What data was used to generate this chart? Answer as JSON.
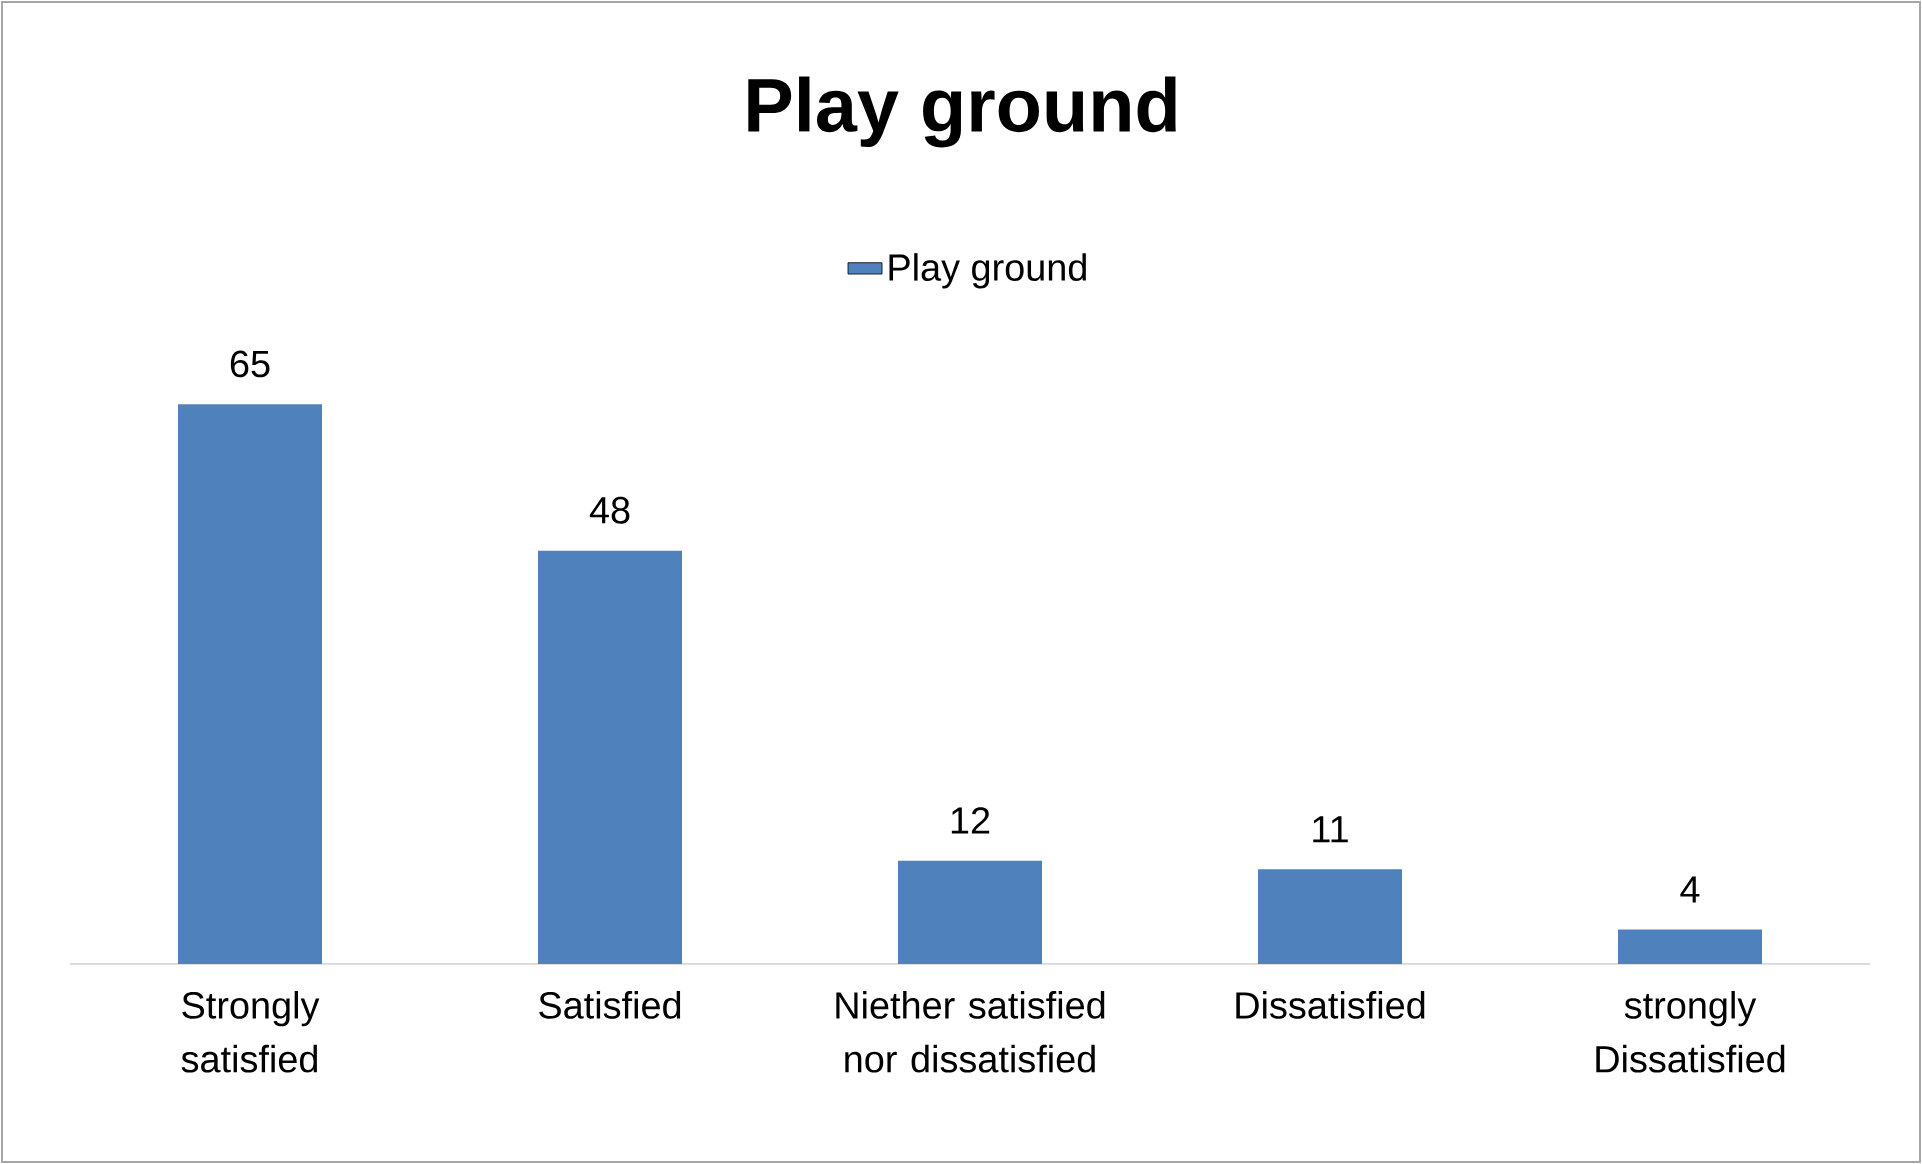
{
  "chart_data": {
    "type": "bar",
    "title": "Play ground",
    "categories": [
      "Strongly satisfied",
      "Satisfied",
      "Niether satisfied nor dissatisfied",
      "Dissatisfied",
      "strongly Dissatisfied"
    ],
    "series": [
      {
        "name": "Play ground",
        "color": "#4f81bd",
        "values": [
          65,
          48,
          12,
          11,
          4
        ]
      }
    ],
    "data_labels": true,
    "legend": "top",
    "grid": false
  }
}
